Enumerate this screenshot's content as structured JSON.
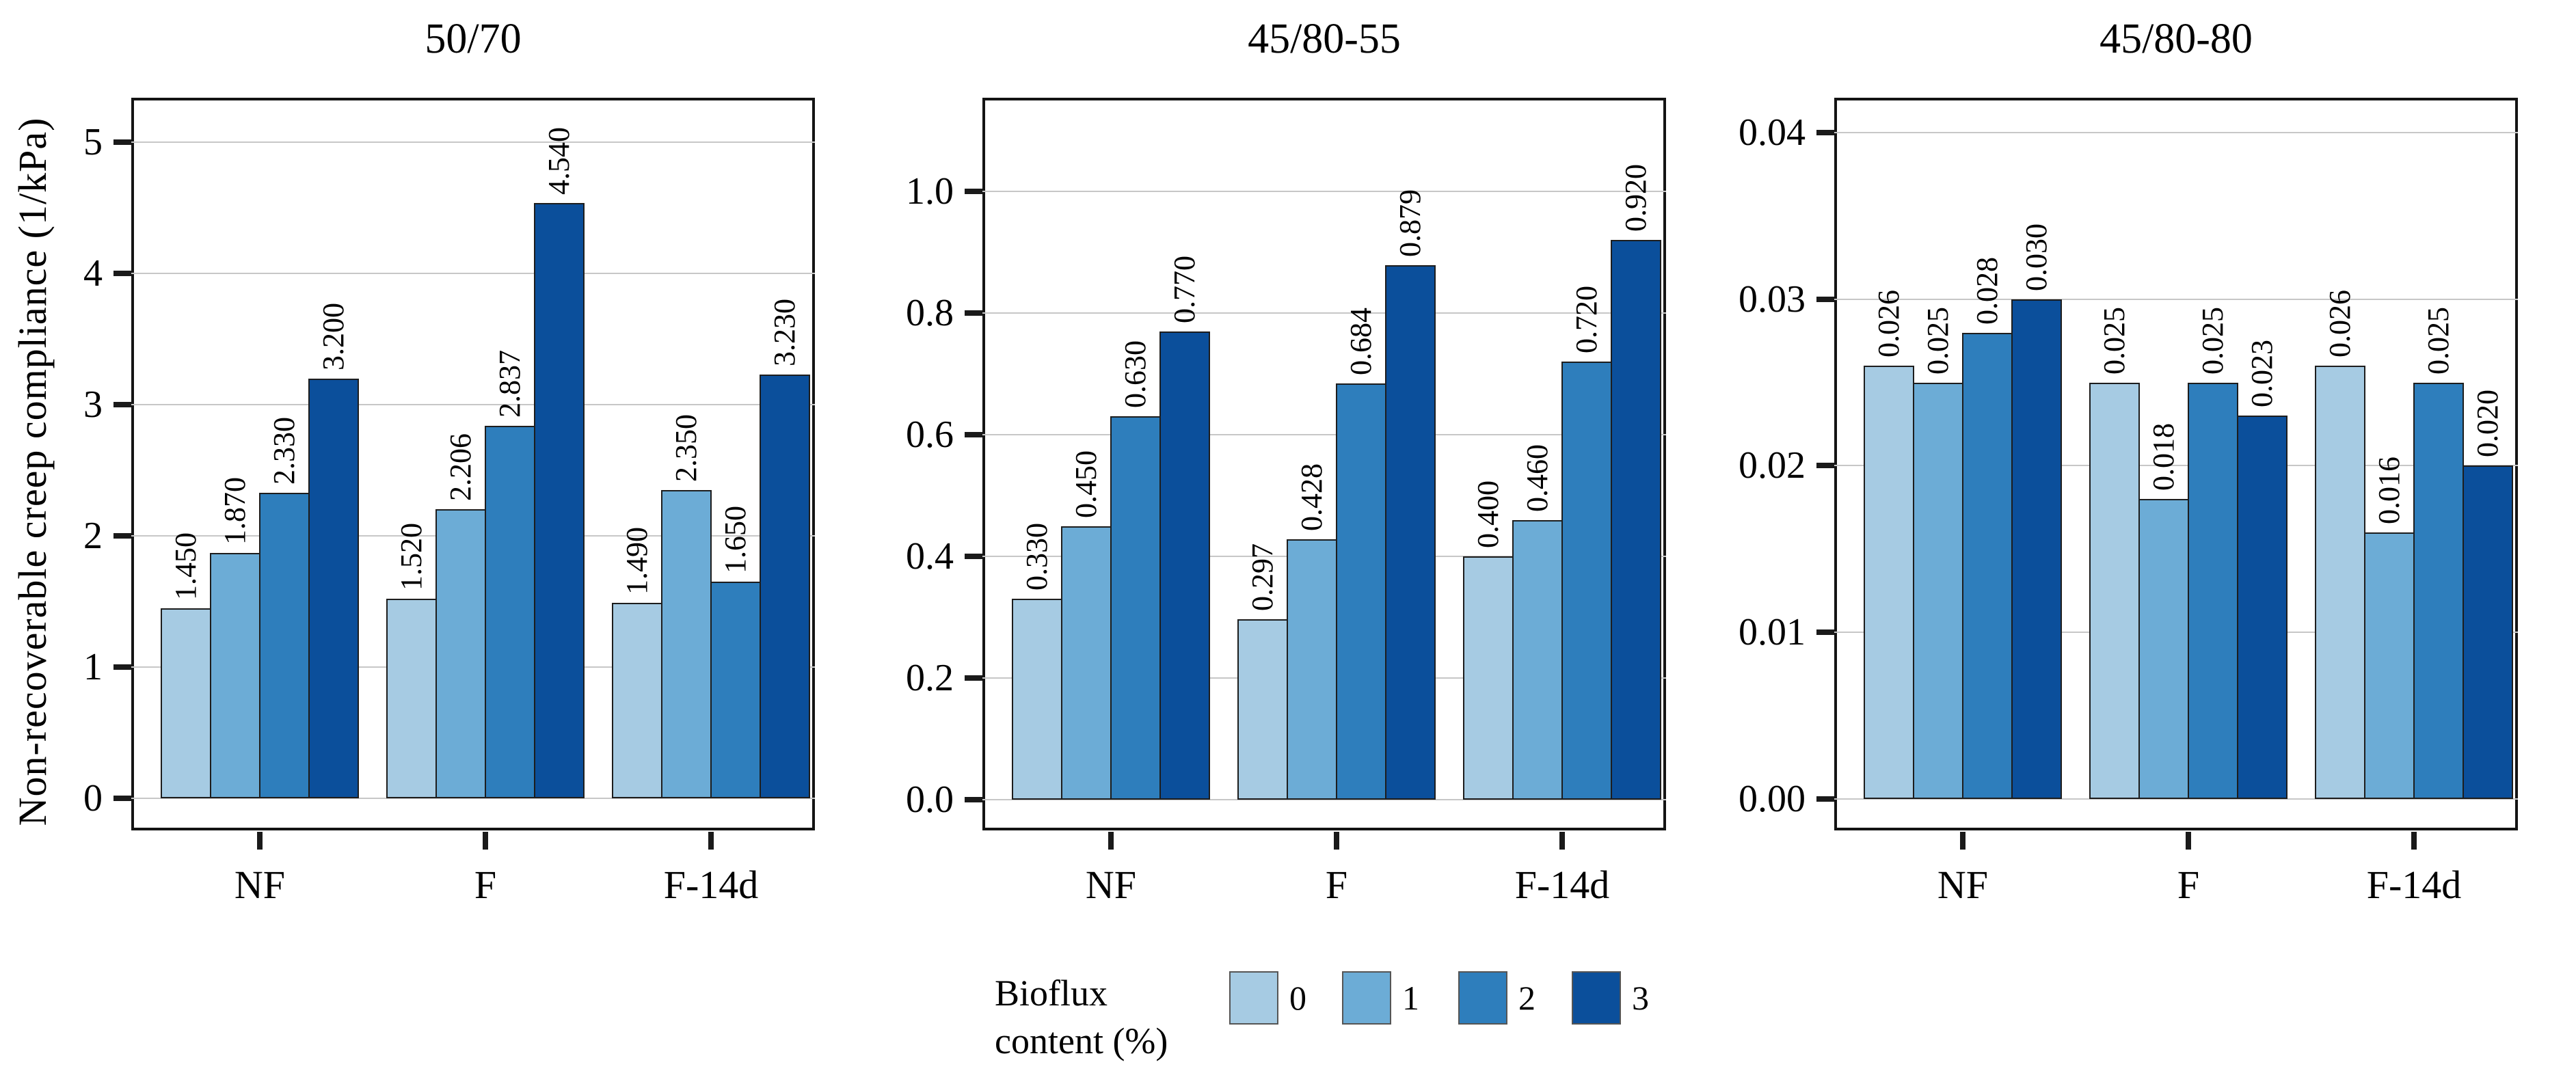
{
  "figure": {
    "y_axis_title": "Non-recoverable creep compliance (1/kPa)",
    "legend": {
      "title": "Bioflux\ncontent (%)",
      "entries": [
        {
          "label": "0",
          "color": "#A6CBE3"
        },
        {
          "label": "1",
          "color": "#6CACD6"
        },
        {
          "label": "2",
          "color": "#2E7EBC"
        },
        {
          "label": "3",
          "color": "#0B4F9B"
        }
      ]
    }
  },
  "palette": [
    "#A6CBE3",
    "#6CACD6",
    "#2E7EBC",
    "#0B4F9B"
  ],
  "style": {
    "grid_color": "#C7C7C7",
    "frame_color": "#141414",
    "bar_border_color": "#1D1D1D",
    "tick_color": "#1A1A1A",
    "legend_swatch_border": "#555555"
  },
  "chart_data": [
    {
      "type": "bar",
      "title": "50/70",
      "categories": [
        "NF",
        "F",
        "F-14d"
      ],
      "series": [
        {
          "name": "0",
          "values": [
            1.45,
            1.52,
            1.49
          ],
          "labels": [
            "1.450",
            "1.520",
            "1.490"
          ]
        },
        {
          "name": "1",
          "values": [
            1.87,
            2.206,
            2.35
          ],
          "labels": [
            "1.870",
            "2.206",
            "2.350"
          ]
        },
        {
          "name": "2",
          "values": [
            2.33,
            2.837,
            1.65
          ],
          "labels": [
            "2.330",
            "2.837",
            "1.650"
          ]
        },
        {
          "name": "3",
          "values": [
            3.2,
            4.54,
            3.23
          ],
          "labels": [
            "3.200",
            "4.540",
            "3.230"
          ]
        }
      ],
      "ylabel": "Non-recoverable creep compliance (1/kPa)",
      "yticks": [
        0,
        1,
        2,
        3,
        4,
        5
      ],
      "ytick_labels": [
        "0",
        "1",
        "2",
        "3",
        "4",
        "5"
      ],
      "ylim": [
        -0.245,
        5.34
      ],
      "grid": true,
      "legend_position": "bottom"
    },
    {
      "type": "bar",
      "title": "45/80-55",
      "categories": [
        "NF",
        "F",
        "F-14d"
      ],
      "series": [
        {
          "name": "0",
          "values": [
            0.33,
            0.297,
            0.4
          ],
          "labels": [
            "0.330",
            "0.297",
            "0.400"
          ]
        },
        {
          "name": "1",
          "values": [
            0.45,
            0.428,
            0.46
          ],
          "labels": [
            "0.450",
            "0.428",
            "0.460"
          ]
        },
        {
          "name": "2",
          "values": [
            0.63,
            0.684,
            0.72
          ],
          "labels": [
            "0.630",
            "0.684",
            "0.720"
          ]
        },
        {
          "name": "3",
          "values": [
            0.77,
            0.879,
            0.92
          ],
          "labels": [
            "0.770",
            "0.879",
            "0.920"
          ]
        }
      ],
      "ylabel": "Non-recoverable creep compliance (1/kPa)",
      "yticks": [
        0.0,
        0.2,
        0.4,
        0.6,
        0.8,
        1.0
      ],
      "ytick_labels": [
        "0.0",
        "0.2",
        "0.4",
        "0.6",
        "0.8",
        "1.0"
      ],
      "ylim": [
        -0.0506,
        1.154
      ],
      "grid": true,
      "legend_position": "bottom"
    },
    {
      "type": "bar",
      "title": "45/80-80",
      "categories": [
        "NF",
        "F",
        "F-14d"
      ],
      "series": [
        {
          "name": "0",
          "values": [
            0.026,
            0.025,
            0.026
          ],
          "labels": [
            "0.026",
            "0.025",
            "0.026"
          ]
        },
        {
          "name": "1",
          "values": [
            0.025,
            0.018,
            0.016
          ],
          "labels": [
            "0.025",
            "0.018",
            "0.016"
          ]
        },
        {
          "name": "2",
          "values": [
            0.028,
            0.025,
            0.025
          ],
          "labels": [
            "0.028",
            "0.025",
            "0.025"
          ]
        },
        {
          "name": "3",
          "values": [
            0.03,
            0.023,
            0.02
          ],
          "labels": [
            "0.030",
            "0.023",
            "0.020"
          ]
        }
      ],
      "ylabel": "Non-recoverable creep compliance (1/kPa)",
      "yticks": [
        0.0,
        0.01,
        0.02,
        0.03,
        0.04
      ],
      "ytick_labels": [
        "0.00",
        "0.01",
        "0.02",
        "0.03",
        "0.04"
      ],
      "ylim": [
        -0.0019,
        0.0421
      ],
      "grid": true,
      "legend_position": "bottom"
    }
  ]
}
